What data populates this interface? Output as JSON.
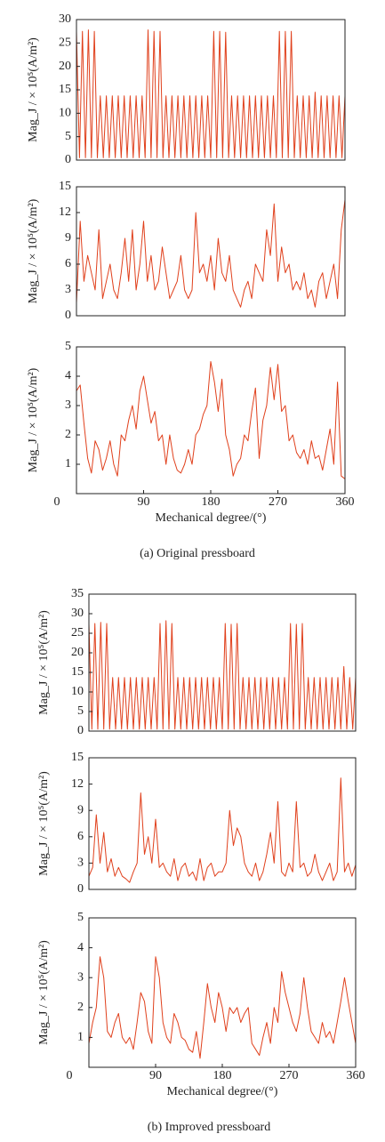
{
  "chart_data": [
    {
      "type": "line",
      "color": "#e0401c",
      "ylabel": "Mag_J / × 10⁵(A/m²)",
      "xlim": [
        0,
        360
      ],
      "ylim": [
        0,
        30
      ],
      "yticks": [
        0,
        5,
        10,
        15,
        20,
        25,
        30
      ],
      "x": [
        0,
        4,
        8,
        12,
        16,
        20,
        24,
        28,
        32,
        36,
        40,
        44,
        48,
        52,
        56,
        60,
        64,
        68,
        72,
        76,
        80,
        84,
        88,
        92,
        96,
        100,
        104,
        108,
        112,
        116,
        120,
        124,
        128,
        132,
        136,
        140,
        144,
        148,
        152,
        156,
        160,
        164,
        168,
        172,
        176,
        180,
        184,
        188,
        192,
        196,
        200,
        204,
        208,
        212,
        216,
        220,
        224,
        228,
        232,
        236,
        240,
        244,
        248,
        252,
        256,
        260,
        264,
        268,
        272,
        276,
        280,
        284,
        288,
        292,
        296,
        300,
        304,
        308,
        312,
        316,
        320,
        324,
        328,
        332,
        336,
        340,
        344,
        348,
        352,
        356,
        360
      ],
      "values": [
        27.5,
        0.5,
        27.5,
        0.5,
        27.8,
        0.5,
        27.5,
        0.5,
        13.7,
        0.5,
        13.7,
        0.5,
        13.7,
        0.5,
        13.7,
        0.5,
        13.7,
        0.5,
        13.7,
        0.5,
        13.7,
        0.5,
        13.7,
        0.5,
        27.8,
        0.5,
        27.5,
        0.5,
        27.5,
        0.5,
        13.7,
        0.5,
        13.7,
        0.5,
        13.7,
        0.5,
        13.7,
        0.5,
        13.7,
        0.5,
        13.7,
        0.5,
        13.7,
        0.5,
        13.7,
        0.5,
        27.5,
        0.5,
        27.5,
        0.5,
        27.3,
        0.5,
        13.7,
        0.5,
        13.7,
        0.5,
        13.7,
        0.5,
        13.7,
        0.5,
        13.7,
        0.5,
        13.7,
        0.5,
        13.7,
        0.5,
        13.7,
        0.5,
        27.5,
        0.5,
        27.5,
        0.5,
        27.5,
        0.5,
        13.7,
        0.5,
        13.7,
        0.5,
        13.7,
        0.5,
        14.5,
        0.5,
        13.7,
        0.5,
        13.7,
        0.5,
        13.7,
        0.5,
        13.7,
        0.5,
        13.7
      ]
    },
    {
      "type": "line",
      "color": "#e0401c",
      "ylabel": "Mag_J / × 10⁵(A/m²)",
      "xlim": [
        0,
        360
      ],
      "ylim": [
        0,
        15
      ],
      "yticks": [
        0,
        3,
        6,
        9,
        12,
        15
      ],
      "x": [
        0,
        5,
        10,
        15,
        20,
        25,
        30,
        35,
        40,
        45,
        50,
        55,
        60,
        65,
        70,
        75,
        80,
        85,
        90,
        95,
        100,
        105,
        110,
        115,
        120,
        125,
        130,
        135,
        140,
        145,
        150,
        155,
        160,
        165,
        170,
        175,
        180,
        185,
        190,
        195,
        200,
        205,
        210,
        215,
        220,
        225,
        230,
        235,
        240,
        245,
        250,
        255,
        260,
        265,
        270,
        275,
        280,
        285,
        290,
        295,
        300,
        305,
        310,
        315,
        320,
        325,
        330,
        335,
        340,
        345,
        350,
        355,
        360
      ],
      "values": [
        1.5,
        11,
        4,
        7,
        5,
        3,
        10,
        2,
        4,
        6,
        3,
        2,
        5,
        9,
        4,
        10,
        3,
        6,
        11,
        4,
        7,
        3,
        4,
        8,
        5,
        2,
        3,
        4,
        7,
        3,
        2,
        3,
        12,
        5,
        6,
        4,
        7,
        3,
        9,
        5,
        4,
        7,
        3,
        2,
        1,
        3,
        4,
        2,
        6,
        5,
        4,
        10,
        7,
        13,
        4,
        8,
        5,
        6,
        3,
        4,
        3,
        5,
        2,
        3,
        1,
        4,
        5,
        2,
        4,
        6,
        2,
        10,
        13.5
      ]
    },
    {
      "type": "line",
      "color": "#e0401c",
      "ylabel": "Mag_J / × 10⁵(A/m²)",
      "xlim": [
        0,
        360
      ],
      "ylim": [
        0,
        5
      ],
      "yticks": [
        1,
        2,
        3,
        4,
        5
      ],
      "xticks": [
        0,
        90,
        180,
        270,
        360
      ],
      "xlabel": "Mechanical degree/(°)",
      "caption": "(a) Original pressboard",
      "x": [
        0,
        5,
        10,
        15,
        20,
        25,
        30,
        35,
        40,
        45,
        50,
        55,
        60,
        65,
        70,
        75,
        80,
        85,
        90,
        95,
        100,
        105,
        110,
        115,
        120,
        125,
        130,
        135,
        140,
        145,
        150,
        155,
        160,
        165,
        170,
        175,
        180,
        185,
        190,
        195,
        200,
        205,
        210,
        215,
        220,
        225,
        230,
        235,
        240,
        245,
        250,
        255,
        260,
        265,
        270,
        275,
        280,
        285,
        290,
        295,
        300,
        305,
        310,
        315,
        320,
        325,
        330,
        335,
        340,
        345,
        350,
        355,
        360
      ],
      "values": [
        3.5,
        3.7,
        2.4,
        1.2,
        0.7,
        1.8,
        1.5,
        0.8,
        1.2,
        1.8,
        1.0,
        0.6,
        2.0,
        1.8,
        2.5,
        3.0,
        2.2,
        3.5,
        4.0,
        3.2,
        2.4,
        2.8,
        1.8,
        2.0,
        1.0,
        2.0,
        1.2,
        0.8,
        0.7,
        1.0,
        1.5,
        1.0,
        2.0,
        2.2,
        2.7,
        3.0,
        4.5,
        3.8,
        2.8,
        3.9,
        2.0,
        1.5,
        0.6,
        1.0,
        1.2,
        2.0,
        1.8,
        2.8,
        3.6,
        1.2,
        2.5,
        3.0,
        4.3,
        3.2,
        4.4,
        2.8,
        3.0,
        1.8,
        2.0,
        1.4,
        1.2,
        1.5,
        1.0,
        1.8,
        1.2,
        1.3,
        0.8,
        1.5,
        2.2,
        1.0,
        3.8,
        0.6,
        0.5
      ]
    },
    {
      "type": "line",
      "color": "#e0401c",
      "ylabel": "Mag_J / × 10⁵(A/m²)",
      "xlim": [
        0,
        360
      ],
      "ylim": [
        0,
        35
      ],
      "yticks": [
        0,
        5,
        10,
        15,
        20,
        25,
        30,
        35
      ],
      "x": [
        0,
        4,
        8,
        12,
        16,
        20,
        24,
        28,
        32,
        36,
        40,
        44,
        48,
        52,
        56,
        60,
        64,
        68,
        72,
        76,
        80,
        84,
        88,
        92,
        96,
        100,
        104,
        108,
        112,
        116,
        120,
        124,
        128,
        132,
        136,
        140,
        144,
        148,
        152,
        156,
        160,
        164,
        168,
        172,
        176,
        180,
        184,
        188,
        192,
        196,
        200,
        204,
        208,
        212,
        216,
        220,
        224,
        228,
        232,
        236,
        240,
        244,
        248,
        252,
        256,
        260,
        264,
        268,
        272,
        276,
        280,
        284,
        288,
        292,
        296,
        300,
        304,
        308,
        312,
        316,
        320,
        324,
        328,
        332,
        336,
        340,
        344,
        348,
        352,
        356,
        360
      ],
      "values": [
        27.5,
        0.5,
        27.5,
        0.5,
        27.8,
        0.5,
        27.5,
        0.5,
        13.7,
        0.5,
        13.7,
        0.5,
        13.7,
        0.5,
        13.7,
        0.5,
        13.7,
        0.5,
        13.7,
        0.5,
        13.7,
        0.5,
        13.7,
        0.5,
        27.5,
        0.5,
        28.2,
        0.5,
        27.5,
        0.5,
        13.7,
        0.5,
        13.7,
        0.5,
        13.7,
        0.5,
        13.7,
        0.5,
        13.7,
        0.5,
        13.7,
        0.5,
        13.7,
        0.5,
        13.7,
        0.5,
        27.5,
        0.5,
        27.3,
        0.5,
        27.5,
        0.5,
        13.7,
        0.5,
        13.7,
        0.5,
        13.7,
        0.5,
        13.7,
        0.5,
        13.7,
        0.5,
        13.7,
        0.5,
        13.7,
        0.5,
        13.7,
        0.5,
        27.5,
        0.5,
        27.3,
        0.5,
        27.5,
        0.5,
        13.7,
        0.5,
        13.7,
        0.5,
        13.7,
        0.5,
        13.7,
        0.5,
        13.7,
        0.5,
        13.7,
        0.5,
        16.5,
        0.5,
        13.7,
        0.5,
        13.7
      ]
    },
    {
      "type": "line",
      "color": "#e0401c",
      "ylabel": "Mag_J / × 10⁵(A/m²)",
      "xlim": [
        0,
        360
      ],
      "ylim": [
        0,
        15
      ],
      "yticks": [
        0,
        3,
        6,
        9,
        12,
        15
      ],
      "x": [
        0,
        5,
        10,
        15,
        20,
        25,
        30,
        35,
        40,
        45,
        50,
        55,
        60,
        65,
        70,
        75,
        80,
        85,
        90,
        95,
        100,
        105,
        110,
        115,
        120,
        125,
        130,
        135,
        140,
        145,
        150,
        155,
        160,
        165,
        170,
        175,
        180,
        185,
        190,
        195,
        200,
        205,
        210,
        215,
        220,
        225,
        230,
        235,
        240,
        245,
        250,
        255,
        260,
        265,
        270,
        275,
        280,
        285,
        290,
        295,
        300,
        305,
        310,
        315,
        320,
        325,
        330,
        335,
        340,
        345,
        350,
        355,
        360
      ],
      "values": [
        1.5,
        2.5,
        8.5,
        3,
        6.5,
        2,
        3.5,
        1.5,
        2.5,
        1.5,
        1.2,
        0.8,
        2,
        3,
        11,
        4,
        6,
        3,
        8,
        2.5,
        3,
        2,
        1.5,
        3.5,
        1,
        2.5,
        3,
        1.5,
        2,
        1,
        3.5,
        1,
        2.5,
        3,
        1.5,
        2,
        2,
        3,
        9,
        5,
        7,
        6,
        3,
        2,
        1.5,
        3,
        1,
        2,
        4,
        6.5,
        3,
        10,
        2,
        1.5,
        3,
        2,
        10,
        2.5,
        3,
        1.5,
        2,
        4,
        2,
        1,
        2,
        3,
        1,
        2,
        12.7,
        2,
        3,
        1.5,
        2.8
      ]
    },
    {
      "type": "line",
      "color": "#e0401c",
      "ylabel": "Mag_J / × 10⁵(A/m²)",
      "xlim": [
        0,
        360
      ],
      "ylim": [
        0,
        5
      ],
      "yticks": [
        1,
        2,
        3,
        4,
        5
      ],
      "xticks": [
        0,
        90,
        180,
        270,
        360
      ],
      "xlabel": "Mechanical degree/(°)",
      "caption": "(b) Improved pressboard",
      "x": [
        0,
        5,
        10,
        15,
        20,
        25,
        30,
        35,
        40,
        45,
        50,
        55,
        60,
        65,
        70,
        75,
        80,
        85,
        90,
        95,
        100,
        105,
        110,
        115,
        120,
        125,
        130,
        135,
        140,
        145,
        150,
        155,
        160,
        165,
        170,
        175,
        180,
        185,
        190,
        195,
        200,
        205,
        210,
        215,
        220,
        225,
        230,
        235,
        240,
        245,
        250,
        255,
        260,
        265,
        270,
        275,
        280,
        285,
        290,
        295,
        300,
        305,
        310,
        315,
        320,
        325,
        330,
        335,
        340,
        345,
        350,
        355,
        360
      ],
      "values": [
        0.8,
        1.5,
        2,
        3.7,
        3,
        1.2,
        1,
        1.5,
        1.8,
        1,
        0.8,
        1,
        0.6,
        1.5,
        2.5,
        2.2,
        1.2,
        0.8,
        3.7,
        3,
        1.5,
        1,
        0.8,
        1.8,
        1.5,
        1,
        0.9,
        0.6,
        0.5,
        1.2,
        0.3,
        1.5,
        2.8,
        2,
        1.5,
        2.5,
        2,
        1.2,
        2,
        1.8,
        2,
        1.5,
        1.8,
        2,
        0.8,
        0.6,
        0.4,
        1,
        1.5,
        0.8,
        2,
        1.5,
        3.2,
        2.5,
        2,
        1.5,
        1.2,
        1.8,
        3,
        2,
        1.2,
        1,
        0.8,
        1.5,
        1,
        1.2,
        0.8,
        1.5,
        2.2,
        3,
        2.2,
        1.5,
        0.8
      ]
    }
  ]
}
